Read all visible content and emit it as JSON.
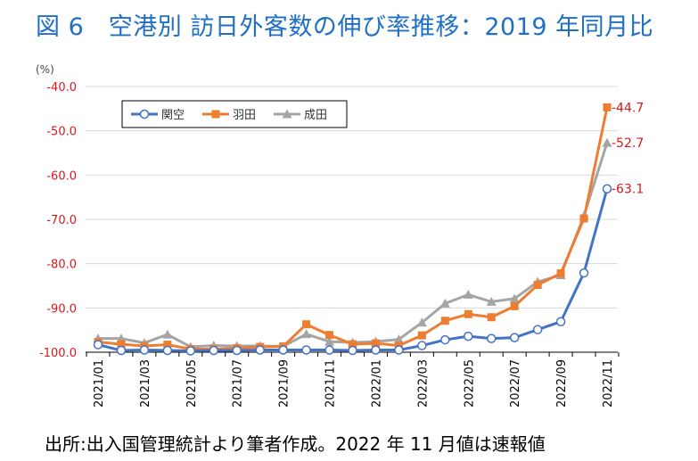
{
  "title": "図 6　空港別  訪日外客数の伸び率推移：2019 年同月比",
  "source": "出所:出入国管理統計より筆者作成。2022 年 11 月値は速報値",
  "colors": {
    "title": "#1f6fc5",
    "tick_labels": "#d7191c",
    "kansai": "#4472c4",
    "haneda": "#ed7d31",
    "narita": "#a5a5a5"
  },
  "chart_data": {
    "type": "line",
    "ylabel": "(%)",
    "ylim": [
      -100,
      -40
    ],
    "yticks": [
      "-40.0",
      "-50.0",
      "-60.0",
      "-70.0",
      "-80.0",
      "-90.0",
      "-100.0"
    ],
    "ytick_values": [
      -40,
      -50,
      -60,
      -70,
      -80,
      -90,
      -100
    ],
    "x": [
      "2021/01",
      "2021/02",
      "2021/03",
      "2021/04",
      "2021/05",
      "2021/06",
      "2021/07",
      "2021/08",
      "2021/09",
      "2021/10",
      "2021/11",
      "2021/12",
      "2022/01",
      "2022/02",
      "2022/03",
      "2022/04",
      "2022/05",
      "2022/06",
      "2022/07",
      "2022/08",
      "2022/09",
      "2022/10",
      "2022/11"
    ],
    "xtick_labels": [
      "2021/01",
      "2021/03",
      "2021/05",
      "2021/07",
      "2021/09",
      "2021/11",
      "2022/01",
      "2022/03",
      "2022/05",
      "2022/07",
      "2022/09",
      "2022/11"
    ],
    "grid": "horizontal",
    "legend": "top-left",
    "series": [
      {
        "name": "関空",
        "color": "#4472c4",
        "marker": "circle",
        "values": [
          -98.3,
          -99.6,
          -99.5,
          -99.6,
          -99.7,
          -99.6,
          -99.6,
          -99.5,
          -99.5,
          -99.5,
          -99.5,
          -99.6,
          -99.5,
          -99.5,
          -98.5,
          -97.2,
          -96.4,
          -96.9,
          -96.7,
          -94.9,
          -93.1,
          -82.1,
          -63.1
        ],
        "end_label": "-63.1"
      },
      {
        "name": "羽田",
        "color": "#ed7d31",
        "marker": "square",
        "values": [
          -97.7,
          -98.2,
          -98.6,
          -98.3,
          -99.3,
          -99.3,
          -99.1,
          -98.8,
          -98.7,
          -93.7,
          -96.1,
          -98.2,
          -98.0,
          -98.5,
          -96.2,
          -92.9,
          -91.4,
          -92.1,
          -89.6,
          -84.8,
          -82.2,
          -69.8,
          -44.7
        ],
        "end_label": "-44.7"
      },
      {
        "name": "成田",
        "color": "#a5a5a5",
        "marker": "triangle",
        "values": [
          -96.9,
          -96.9,
          -97.9,
          -96.0,
          -98.8,
          -98.5,
          -98.6,
          -98.6,
          -98.7,
          -95.9,
          -97.6,
          -97.8,
          -97.6,
          -97.1,
          -93.3,
          -89.0,
          -87.0,
          -88.6,
          -87.9,
          -84.1,
          -82.6,
          -69.2,
          -52.7
        ],
        "end_label": "-52.7"
      }
    ]
  }
}
